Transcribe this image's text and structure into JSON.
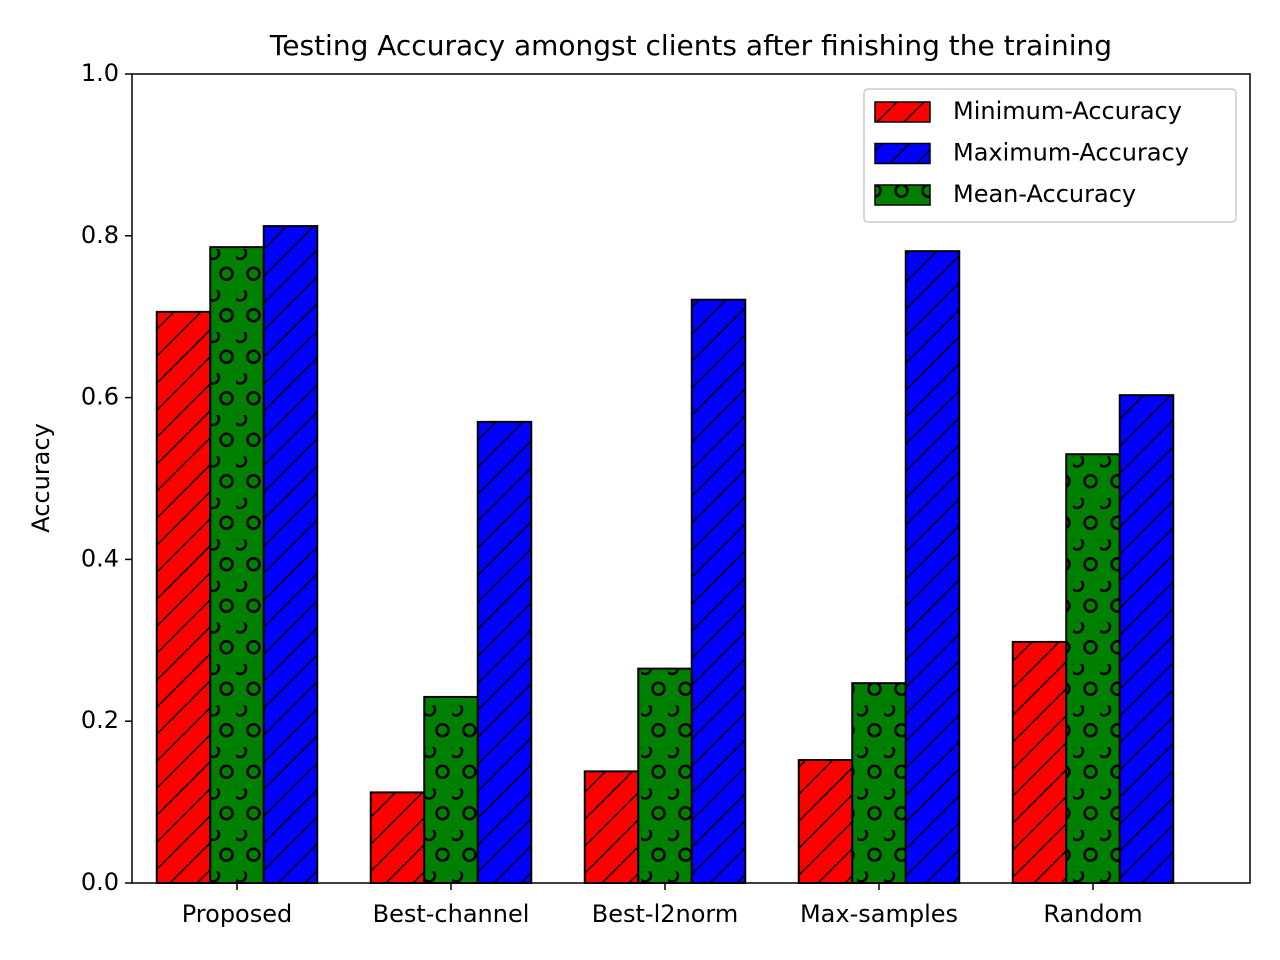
{
  "chart_data": {
    "type": "bar",
    "title": "Testing Accuracy amongst clients after finishing the training",
    "y_label": "Accuracy",
    "categories": [
      "Proposed",
      "Best-channel",
      "Best-l2norm",
      "Max-samples",
      "Random"
    ],
    "series": [
      {
        "name": "Minimum-Accuracy",
        "color": "#ff0000",
        "hatch": "/",
        "values": [
          0.706,
          0.112,
          0.138,
          0.152,
          0.298
        ]
      },
      {
        "name": "Maximum-Accuracy",
        "color": "#0000ff",
        "hatch": "/",
        "values": [
          0.812,
          0.57,
          0.721,
          0.781,
          0.603
        ]
      },
      {
        "name": "Mean-Accuracy",
        "color": "#008000",
        "hatch": "o",
        "values": [
          0.786,
          0.23,
          0.265,
          0.247,
          0.53
        ]
      }
    ],
    "bar_order": [
      "Minimum-Accuracy",
      "Mean-Accuracy",
      "Maximum-Accuracy"
    ],
    "ylim": [
      0,
      1
    ],
    "yticks": [
      {
        "value": 0,
        "label": "0.0"
      },
      0.2,
      0.4,
      0.6,
      0.8,
      {
        "value": 1,
        "label": "1.0"
      }
    ],
    "legend": "upper right"
  }
}
